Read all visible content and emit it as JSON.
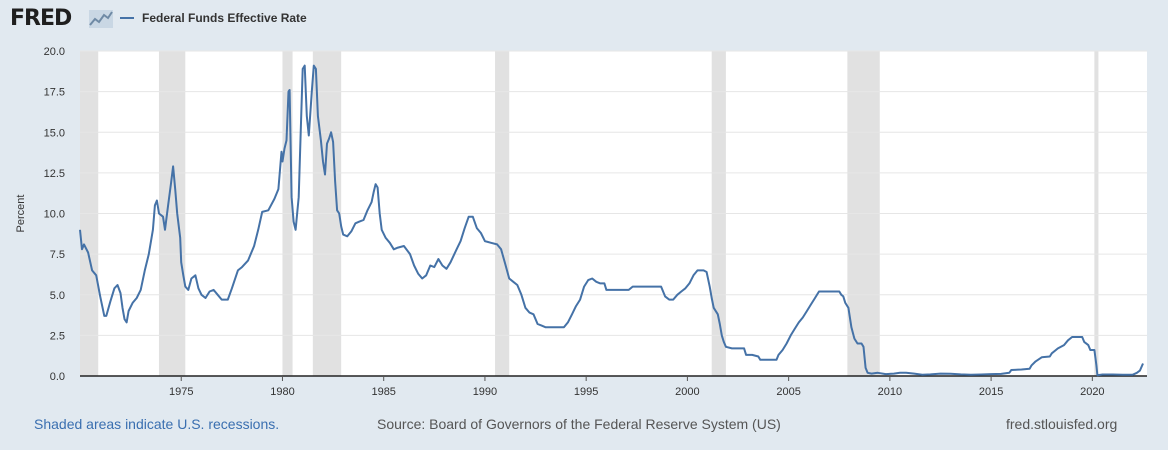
{
  "header": {
    "logo_text": "FRED",
    "logo_icon": "line-graph-icon"
  },
  "footer": {
    "recession_note": "Shaded areas indicate U.S. recessions.",
    "source": "Source: Board of Governors of the Federal Reserve System (US)",
    "site": "fred.stlouisfed.org"
  },
  "colors": {
    "line": "#4572a7",
    "recession_shade": "#e1e1e1",
    "grid": "#e6e6e6",
    "background": "#e1e9f0",
    "plot_background": "#ffffff"
  },
  "chart_data": {
    "type": "line",
    "title": "",
    "xlabel": "",
    "ylabel": "Percent",
    "xlim": [
      1970.0,
      2022.7
    ],
    "ylim": [
      0,
      20
    ],
    "grid": true,
    "legend_placement": "top-left",
    "x_ticks": [
      1975,
      1980,
      1985,
      1990,
      1995,
      2000,
      2005,
      2010,
      2015,
      2020
    ],
    "y_ticks": [
      "0.0",
      "2.5",
      "5.0",
      "7.5",
      "10.0",
      "12.5",
      "15.0",
      "17.5",
      "20.0"
    ],
    "recessions": [
      [
        1969.9,
        1970.9
      ],
      [
        1973.9,
        1975.2
      ],
      [
        1980.0,
        1980.5
      ],
      [
        1981.5,
        1982.9
      ],
      [
        1990.5,
        1991.2
      ],
      [
        2001.2,
        2001.9
      ],
      [
        2007.9,
        2009.5
      ],
      [
        2020.1,
        2020.3
      ]
    ],
    "series": [
      {
        "name": "Federal Funds Effective Rate",
        "points": [
          [
            1970.0,
            9.0
          ],
          [
            1970.1,
            7.8
          ],
          [
            1970.2,
            8.1
          ],
          [
            1970.4,
            7.6
          ],
          [
            1970.6,
            6.5
          ],
          [
            1970.8,
            6.2
          ],
          [
            1971.0,
            4.9
          ],
          [
            1971.2,
            3.7
          ],
          [
            1971.3,
            3.7
          ],
          [
            1971.5,
            4.6
          ],
          [
            1971.7,
            5.4
          ],
          [
            1971.85,
            5.6
          ],
          [
            1972.0,
            5.1
          ],
          [
            1972.1,
            4.2
          ],
          [
            1972.2,
            3.5
          ],
          [
            1972.3,
            3.3
          ],
          [
            1972.4,
            4.0
          ],
          [
            1972.6,
            4.5
          ],
          [
            1972.8,
            4.8
          ],
          [
            1973.0,
            5.3
          ],
          [
            1973.2,
            6.5
          ],
          [
            1973.4,
            7.5
          ],
          [
            1973.6,
            9.0
          ],
          [
            1973.7,
            10.5
          ],
          [
            1973.8,
            10.8
          ],
          [
            1973.9,
            10.0
          ],
          [
            1974.1,
            9.8
          ],
          [
            1974.2,
            9.0
          ],
          [
            1974.35,
            10.5
          ],
          [
            1974.5,
            11.9
          ],
          [
            1974.6,
            12.9
          ],
          [
            1974.7,
            11.5
          ],
          [
            1974.8,
            10.0
          ],
          [
            1974.95,
            8.5
          ],
          [
            1975.0,
            7.0
          ],
          [
            1975.1,
            6.2
          ],
          [
            1975.2,
            5.5
          ],
          [
            1975.35,
            5.3
          ],
          [
            1975.5,
            6.0
          ],
          [
            1975.7,
            6.2
          ],
          [
            1975.85,
            5.4
          ],
          [
            1976.0,
            5.0
          ],
          [
            1976.2,
            4.8
          ],
          [
            1976.4,
            5.2
          ],
          [
            1976.6,
            5.3
          ],
          [
            1976.8,
            5.0
          ],
          [
            1977.0,
            4.7
          ],
          [
            1977.3,
            4.7
          ],
          [
            1977.5,
            5.4
          ],
          [
            1977.8,
            6.5
          ],
          [
            1978.0,
            6.7
          ],
          [
            1978.3,
            7.1
          ],
          [
            1978.6,
            8.0
          ],
          [
            1978.8,
            9.0
          ],
          [
            1979.0,
            10.1
          ],
          [
            1979.3,
            10.2
          ],
          [
            1979.6,
            10.9
          ],
          [
            1979.8,
            11.5
          ],
          [
            1979.95,
            13.8
          ],
          [
            1980.0,
            13.2
          ],
          [
            1980.1,
            14.0
          ],
          [
            1980.2,
            14.5
          ],
          [
            1980.3,
            17.5
          ],
          [
            1980.35,
            17.6
          ],
          [
            1980.45,
            11.0
          ],
          [
            1980.55,
            9.5
          ],
          [
            1980.65,
            9.0
          ],
          [
            1980.8,
            11.0
          ],
          [
            1980.9,
            15.0
          ],
          [
            1981.0,
            18.9
          ],
          [
            1981.1,
            19.1
          ],
          [
            1981.2,
            16.0
          ],
          [
            1981.3,
            14.8
          ],
          [
            1981.45,
            17.5
          ],
          [
            1981.55,
            19.1
          ],
          [
            1981.65,
            18.9
          ],
          [
            1981.75,
            16.0
          ],
          [
            1981.9,
            14.5
          ],
          [
            1982.0,
            13.2
          ],
          [
            1982.1,
            12.4
          ],
          [
            1982.2,
            14.3
          ],
          [
            1982.3,
            14.6
          ],
          [
            1982.4,
            15.0
          ],
          [
            1982.5,
            14.4
          ],
          [
            1982.6,
            12.0
          ],
          [
            1982.7,
            10.2
          ],
          [
            1982.8,
            10.0
          ],
          [
            1982.9,
            9.2
          ],
          [
            1983.0,
            8.7
          ],
          [
            1983.2,
            8.6
          ],
          [
            1983.4,
            8.9
          ],
          [
            1983.6,
            9.4
          ],
          [
            1983.8,
            9.5
          ],
          [
            1984.0,
            9.6
          ],
          [
            1984.2,
            10.2
          ],
          [
            1984.4,
            10.7
          ],
          [
            1984.5,
            11.3
          ],
          [
            1984.6,
            11.8
          ],
          [
            1984.7,
            11.6
          ],
          [
            1984.8,
            10.0
          ],
          [
            1984.9,
            9.0
          ],
          [
            1985.1,
            8.5
          ],
          [
            1985.3,
            8.2
          ],
          [
            1985.5,
            7.8
          ],
          [
            1985.7,
            7.9
          ],
          [
            1986.0,
            8.0
          ],
          [
            1986.3,
            7.5
          ],
          [
            1986.5,
            6.8
          ],
          [
            1986.7,
            6.3
          ],
          [
            1986.9,
            6.0
          ],
          [
            1987.1,
            6.2
          ],
          [
            1987.3,
            6.8
          ],
          [
            1987.5,
            6.7
          ],
          [
            1987.7,
            7.2
          ],
          [
            1987.9,
            6.8
          ],
          [
            1988.1,
            6.6
          ],
          [
            1988.3,
            7.0
          ],
          [
            1988.6,
            7.8
          ],
          [
            1988.8,
            8.3
          ],
          [
            1989.0,
            9.1
          ],
          [
            1989.2,
            9.8
          ],
          [
            1989.4,
            9.8
          ],
          [
            1989.6,
            9.1
          ],
          [
            1989.8,
            8.8
          ],
          [
            1990.0,
            8.3
          ],
          [
            1990.3,
            8.2
          ],
          [
            1990.6,
            8.1
          ],
          [
            1990.8,
            7.8
          ],
          [
            1991.0,
            6.9
          ],
          [
            1991.2,
            6.0
          ],
          [
            1991.4,
            5.8
          ],
          [
            1991.6,
            5.6
          ],
          [
            1991.8,
            5.0
          ],
          [
            1992.0,
            4.2
          ],
          [
            1992.2,
            3.9
          ],
          [
            1992.4,
            3.8
          ],
          [
            1992.6,
            3.2
          ],
          [
            1992.8,
            3.1
          ],
          [
            1993.0,
            3.0
          ],
          [
            1993.3,
            3.0
          ],
          [
            1993.6,
            3.0
          ],
          [
            1993.9,
            3.0
          ],
          [
            1994.1,
            3.3
          ],
          [
            1994.3,
            3.8
          ],
          [
            1994.5,
            4.3
          ],
          [
            1994.7,
            4.7
          ],
          [
            1994.9,
            5.5
          ],
          [
            1995.1,
            5.9
          ],
          [
            1995.3,
            6.0
          ],
          [
            1995.5,
            5.8
          ],
          [
            1995.7,
            5.7
          ],
          [
            1995.9,
            5.7
          ],
          [
            1996.0,
            5.3
          ],
          [
            1996.3,
            5.3
          ],
          [
            1996.6,
            5.3
          ],
          [
            1996.9,
            5.3
          ],
          [
            1997.1,
            5.3
          ],
          [
            1997.3,
            5.5
          ],
          [
            1997.6,
            5.5
          ],
          [
            1997.9,
            5.5
          ],
          [
            1998.2,
            5.5
          ],
          [
            1998.5,
            5.5
          ],
          [
            1998.7,
            5.5
          ],
          [
            1998.8,
            5.2
          ],
          [
            1998.9,
            4.9
          ],
          [
            1999.1,
            4.7
          ],
          [
            1999.3,
            4.7
          ],
          [
            1999.5,
            5.0
          ],
          [
            1999.7,
            5.2
          ],
          [
            1999.9,
            5.4
          ],
          [
            2000.1,
            5.7
          ],
          [
            2000.3,
            6.2
          ],
          [
            2000.5,
            6.5
          ],
          [
            2000.8,
            6.5
          ],
          [
            2000.95,
            6.4
          ],
          [
            2001.1,
            5.5
          ],
          [
            2001.2,
            4.8
          ],
          [
            2001.3,
            4.2
          ],
          [
            2001.5,
            3.8
          ],
          [
            2001.6,
            3.2
          ],
          [
            2001.7,
            2.5
          ],
          [
            2001.8,
            2.1
          ],
          [
            2001.9,
            1.8
          ],
          [
            2002.2,
            1.7
          ],
          [
            2002.5,
            1.7
          ],
          [
            2002.8,
            1.7
          ],
          [
            2002.9,
            1.3
          ],
          [
            2003.2,
            1.3
          ],
          [
            2003.5,
            1.2
          ],
          [
            2003.6,
            1.0
          ],
          [
            2004.0,
            1.0
          ],
          [
            2004.4,
            1.0
          ],
          [
            2004.5,
            1.3
          ],
          [
            2004.7,
            1.6
          ],
          [
            2004.9,
            2.0
          ],
          [
            2005.1,
            2.5
          ],
          [
            2005.3,
            2.9
          ],
          [
            2005.5,
            3.3
          ],
          [
            2005.7,
            3.6
          ],
          [
            2005.9,
            4.0
          ],
          [
            2006.1,
            4.4
          ],
          [
            2006.3,
            4.8
          ],
          [
            2006.5,
            5.2
          ],
          [
            2006.7,
            5.2
          ],
          [
            2006.9,
            5.2
          ],
          [
            2007.1,
            5.2
          ],
          [
            2007.3,
            5.2
          ],
          [
            2007.5,
            5.2
          ],
          [
            2007.6,
            5.0
          ],
          [
            2007.7,
            4.9
          ],
          [
            2007.8,
            4.5
          ],
          [
            2007.95,
            4.2
          ],
          [
            2008.1,
            3.0
          ],
          [
            2008.25,
            2.3
          ],
          [
            2008.4,
            2.0
          ],
          [
            2008.6,
            2.0
          ],
          [
            2008.7,
            1.8
          ],
          [
            2008.8,
            0.5
          ],
          [
            2008.9,
            0.2
          ],
          [
            2009.1,
            0.15
          ],
          [
            2009.4,
            0.2
          ],
          [
            2009.8,
            0.12
          ],
          [
            2010.2,
            0.15
          ],
          [
            2010.5,
            0.2
          ],
          [
            2010.8,
            0.2
          ],
          [
            2011.2,
            0.15
          ],
          [
            2011.6,
            0.08
          ],
          [
            2012.0,
            0.1
          ],
          [
            2012.5,
            0.15
          ],
          [
            2013.0,
            0.14
          ],
          [
            2013.5,
            0.1
          ],
          [
            2014.0,
            0.08
          ],
          [
            2014.5,
            0.09
          ],
          [
            2015.0,
            0.12
          ],
          [
            2015.5,
            0.13
          ],
          [
            2015.9,
            0.2
          ],
          [
            2016.0,
            0.37
          ],
          [
            2016.5,
            0.4
          ],
          [
            2016.9,
            0.45
          ],
          [
            2017.0,
            0.66
          ],
          [
            2017.2,
            0.9
          ],
          [
            2017.5,
            1.15
          ],
          [
            2017.9,
            1.2
          ],
          [
            2018.0,
            1.4
          ],
          [
            2018.3,
            1.7
          ],
          [
            2018.6,
            1.9
          ],
          [
            2018.8,
            2.2
          ],
          [
            2019.0,
            2.4
          ],
          [
            2019.5,
            2.4
          ],
          [
            2019.6,
            2.1
          ],
          [
            2019.8,
            1.9
          ],
          [
            2019.9,
            1.6
          ],
          [
            2020.1,
            1.6
          ],
          [
            2020.2,
            0.65
          ],
          [
            2020.25,
            0.05
          ],
          [
            2020.5,
            0.09
          ],
          [
            2021.0,
            0.09
          ],
          [
            2021.5,
            0.08
          ],
          [
            2022.0,
            0.08
          ],
          [
            2022.2,
            0.2
          ],
          [
            2022.35,
            0.33
          ],
          [
            2022.5,
            0.77
          ]
        ]
      }
    ]
  }
}
